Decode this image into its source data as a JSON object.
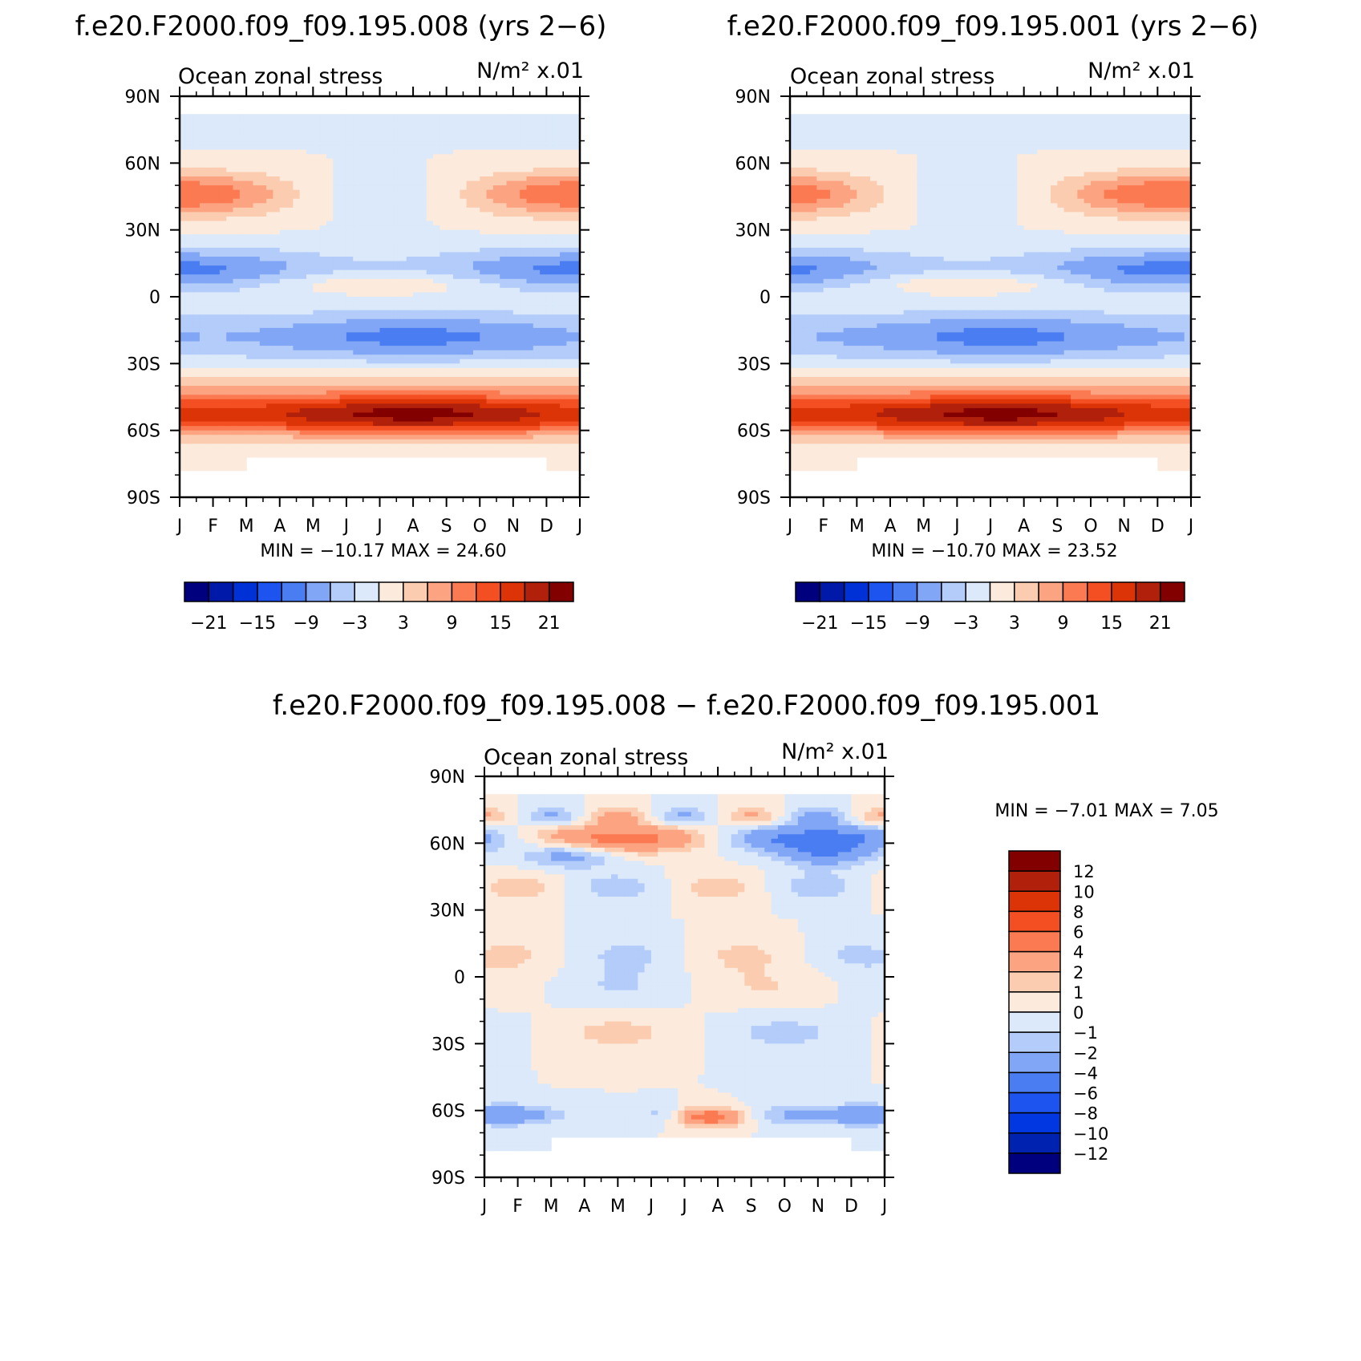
{
  "figure_title_left": "f.e20.F2000.f09_f09.195.008 (yrs 2−6)",
  "figure_title_right": "f.e20.F2000.f09_f09.195.001 (yrs 2−6)",
  "figure_title_diff": "f.e20.F2000.f09_f09.195.008 − f.e20.F2000.f09_f09.195.001",
  "chart_data": [
    {
      "type": "heatmap",
      "id": "panel-008",
      "title": "f.e20.F2000.f09_f09.195.008 (yrs 2−6)",
      "subtitle_left": "Ocean zonal stress",
      "units": "N/m² x.01",
      "x_ticks": [
        "J",
        "F",
        "M",
        "A",
        "M",
        "J",
        "J",
        "A",
        "S",
        "O",
        "N",
        "D",
        "J"
      ],
      "y_ticks": [
        "90N",
        "60N",
        "30N",
        "0",
        "30S",
        "60S",
        "90S"
      ],
      "y_values": [
        90,
        60,
        30,
        0,
        -30,
        -60,
        -90
      ],
      "stats": "MIN = −10.17 MAX = 24.60",
      "min": -10.17,
      "max": 24.6,
      "colorbar_labels": [
        "−21",
        "−15",
        "−9",
        "−3",
        "3",
        "9",
        "15",
        "21"
      ],
      "levels": [
        -21,
        -18,
        -15,
        -12,
        -9,
        -6,
        -3,
        0,
        3,
        6,
        9,
        12,
        15,
        18,
        21,
        24
      ],
      "model": "base",
      "month_shift": 0
    },
    {
      "type": "heatmap",
      "id": "panel-001",
      "title": "f.e20.F2000.f09_f09.195.001 (yrs 2−6)",
      "subtitle_left": "Ocean zonal stress",
      "units": "N/m² x.01",
      "x_ticks": [
        "J",
        "F",
        "M",
        "A",
        "M",
        "J",
        "J",
        "A",
        "S",
        "O",
        "N",
        "D",
        "J"
      ],
      "y_ticks": [
        "90N",
        "60N",
        "30N",
        "0",
        "30S",
        "60S",
        "90S"
      ],
      "y_values": [
        90,
        60,
        30,
        0,
        -30,
        -60,
        -90
      ],
      "stats": "MIN = −10.70 MAX = 23.52",
      "min": -10.7,
      "max": 23.52,
      "colorbar_labels": [
        "−21",
        "−15",
        "−9",
        "−3",
        "3",
        "9",
        "15",
        "21"
      ],
      "levels": [
        -21,
        -18,
        -15,
        -12,
        -9,
        -6,
        -3,
        0,
        3,
        6,
        9,
        12,
        15,
        18,
        21,
        24
      ],
      "model": "base",
      "month_shift": 0.7
    },
    {
      "type": "heatmap",
      "id": "panel-diff",
      "title": "f.e20.F2000.f09_f09.195.008 − f.e20.F2000.f09_f09.195.001",
      "subtitle_left": "Ocean zonal stress",
      "units": "N/m² x.01",
      "x_ticks": [
        "J",
        "F",
        "M",
        "A",
        "M",
        "J",
        "J",
        "A",
        "S",
        "O",
        "N",
        "D",
        "J"
      ],
      "y_ticks": [
        "90N",
        "60N",
        "30N",
        "0",
        "30S",
        "60S",
        "90S"
      ],
      "y_values": [
        90,
        60,
        30,
        0,
        -30,
        -60,
        -90
      ],
      "stats": "MIN = −7.01 MAX = 7.05",
      "min": -7.01,
      "max": 7.05,
      "colorbar_labels": [
        "12",
        "10",
        "8",
        "6",
        "4",
        "2",
        "1",
        "0",
        "−1",
        "−2",
        "−4",
        "−6",
        "−8",
        "−10",
        "−12"
      ],
      "levels": [
        -12,
        -10,
        -8,
        -6,
        -4,
        -2,
        -1,
        0,
        1,
        2,
        4,
        6,
        8,
        10,
        12
      ],
      "model": "diff"
    }
  ],
  "colors": {
    "palette16": [
      "#00007f",
      "#0019a8",
      "#0031d6",
      "#1d54ef",
      "#4b7df2",
      "#80a6f5",
      "#b3ccfa",
      "#dbe9fa",
      "#fcebdc",
      "#fcccb1",
      "#fca482",
      "#fb7a51",
      "#f44f22",
      "#dc3407",
      "#b0200b",
      "#830000"
    ],
    "palette14": [
      "#00007f",
      "#0022b0",
      "#0037e0",
      "#1d54ef",
      "#4b7df2",
      "#80a6f5",
      "#b3ccfa",
      "#dbe9fa",
      "#fcebdc",
      "#fcccb1",
      "#fca482",
      "#fb7a51",
      "#f44f22",
      "#dc3407",
      "#b0200b",
      "#830000"
    ]
  }
}
